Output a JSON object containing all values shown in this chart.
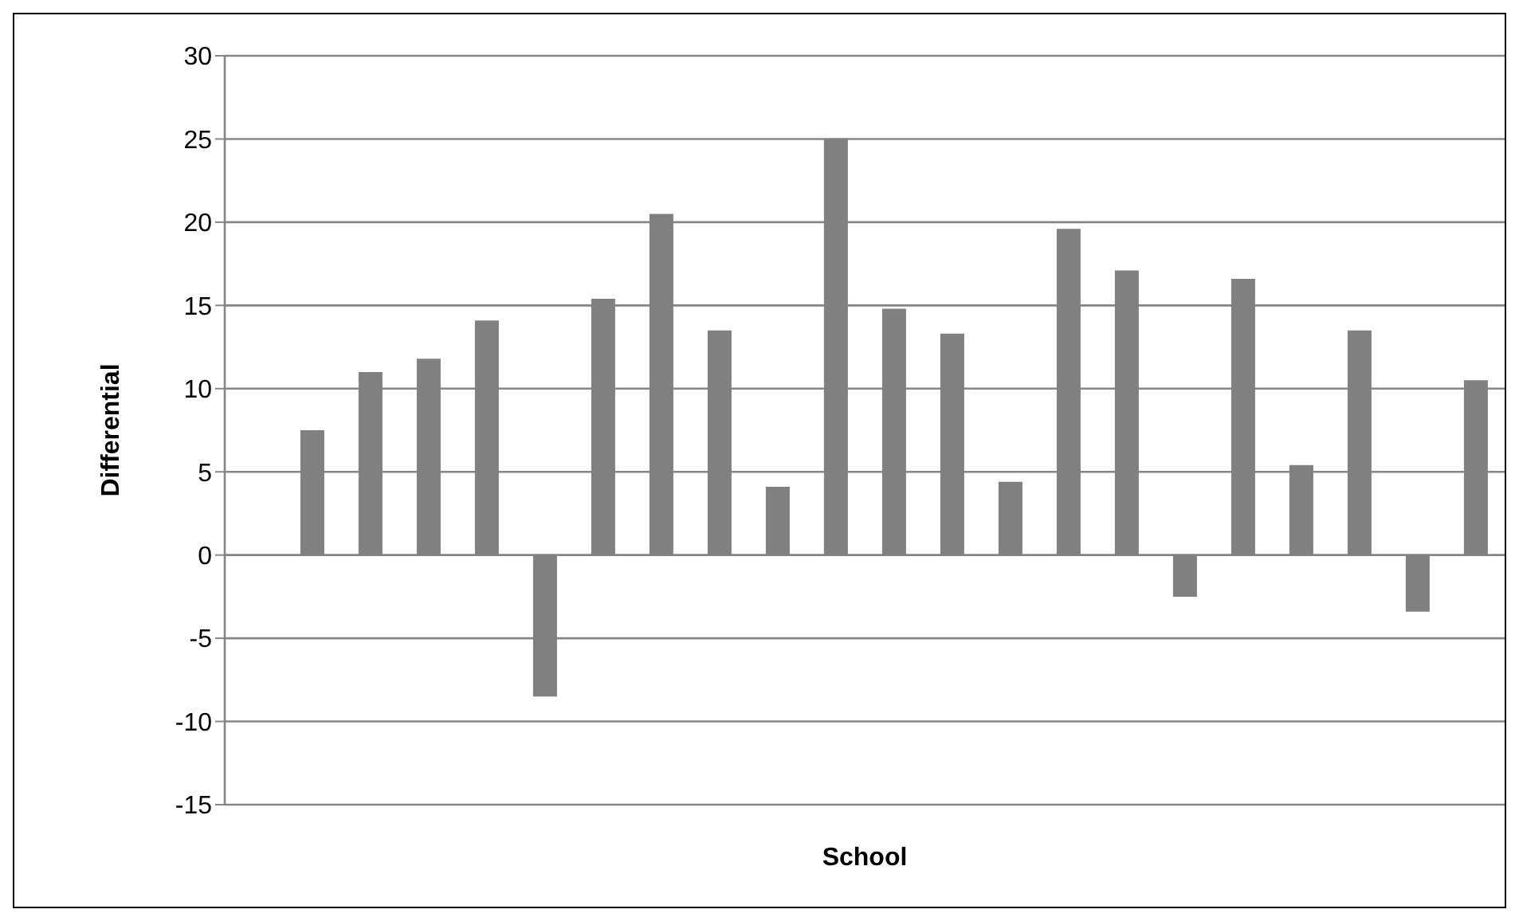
{
  "chart_data": {
    "type": "bar",
    "xlabel": "School",
    "ylabel": "Differential",
    "categories": [
      null,
      null,
      null,
      null,
      null,
      null,
      null,
      null,
      null,
      null,
      null,
      null,
      null,
      null,
      null,
      null,
      null,
      null,
      null,
      null,
      null,
      null
    ],
    "values": [
      null,
      7.5,
      11.0,
      11.8,
      14.1,
      -8.5,
      15.4,
      20.5,
      13.5,
      4.1,
      25.0,
      14.8,
      13.3,
      4.4,
      19.6,
      17.1,
      -2.5,
      16.6,
      5.4,
      13.5,
      -3.4,
      10.5
    ],
    "color": "#808080",
    "ylim": [
      -15,
      30
    ],
    "yticks": [
      -15,
      -10,
      -5,
      0,
      5,
      10,
      15,
      20,
      25,
      30
    ],
    "grid": "y",
    "legend": false,
    "tick_labels": "y"
  }
}
